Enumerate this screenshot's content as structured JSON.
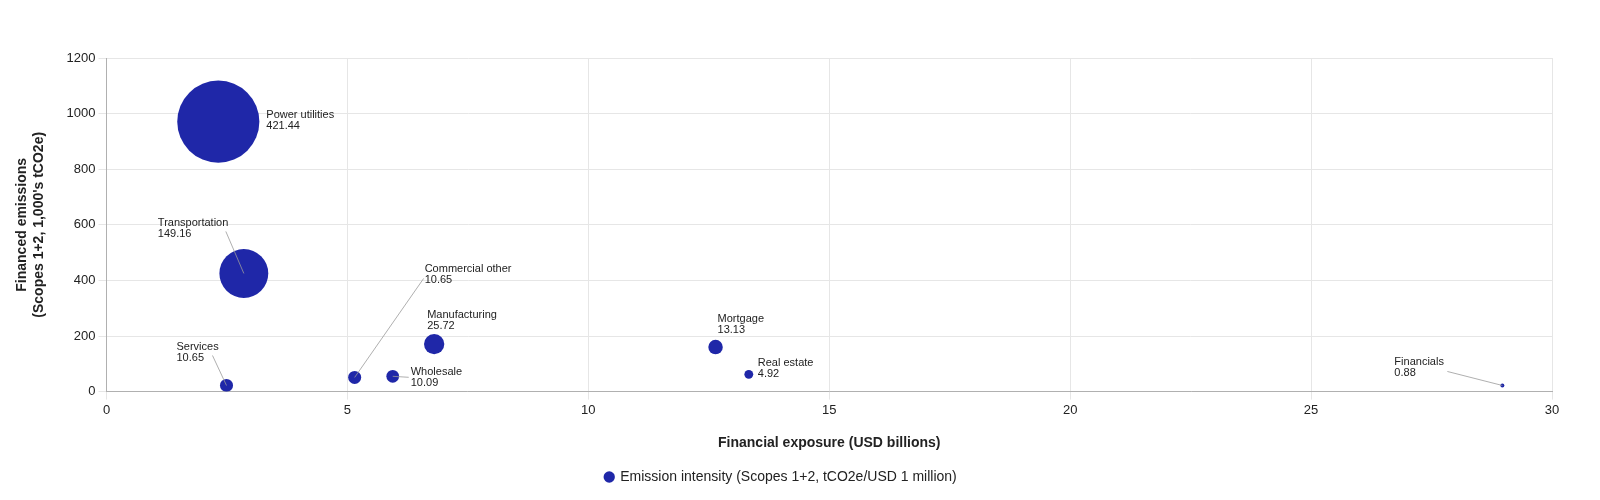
{
  "chart_data": {
    "type": "bubble",
    "x_label": "Financial exposure (USD billions)",
    "y_label": [
      "Financed emissions",
      "(Scopes 1+2, 1,000's tCO2e)"
    ],
    "xlim": [
      0,
      30
    ],
    "xticks": [
      0,
      5,
      10,
      15,
      20,
      25,
      30
    ],
    "ylim": [
      0,
      1200
    ],
    "yticks": [
      0,
      200,
      400,
      600,
      800,
      1000,
      1200
    ],
    "grid": true,
    "legend": "bottom",
    "series": [
      {
        "name": "Emission intensity (Scopes 1+2, tCO2e/USD 1 million)",
        "color": "#1f27a8",
        "points": [
          {
            "label": "Power utilities",
            "x": 2.32,
            "y": 971,
            "size": 421.44
          },
          {
            "label": "Transportation",
            "x": 2.85,
            "y": 425,
            "size": 149.16
          },
          {
            "label": "Services",
            "x": 2.49,
            "y": 22,
            "size": 10.65
          },
          {
            "label": "Commercial other",
            "x": 5.15,
            "y": 51,
            "size": 10.65
          },
          {
            "label": "Manufacturing",
            "x": 6.8,
            "y": 171,
            "size": 25.72
          },
          {
            "label": "Wholesale",
            "x": 5.94,
            "y": 55,
            "size": 10.09
          },
          {
            "label": "Mortgage",
            "x": 12.64,
            "y": 160,
            "size": 13.13
          },
          {
            "label": "Real estate",
            "x": 13.33,
            "y": 62,
            "size": 4.92
          },
          {
            "label": "Financials",
            "x": 28.97,
            "y": 22,
            "size": 0.88
          }
        ]
      }
    ]
  }
}
